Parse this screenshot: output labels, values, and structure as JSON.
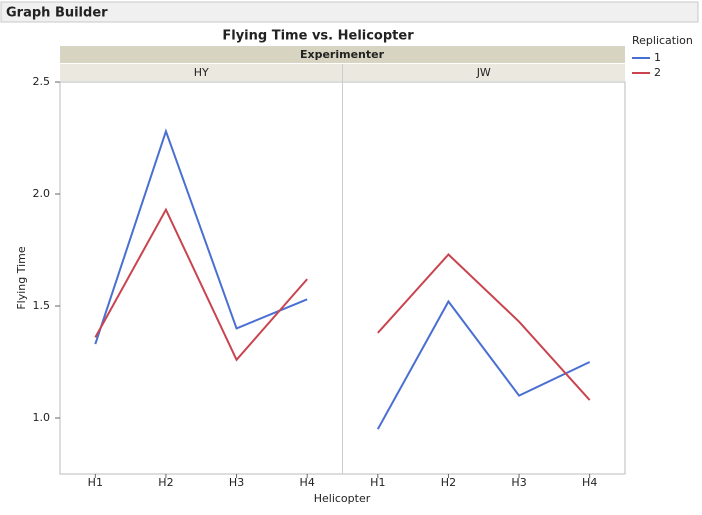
{
  "header": {
    "title": "Graph Builder"
  },
  "chart_data": {
    "type": "line",
    "title": "Flying Time vs. Helicopter",
    "facet_label": "Experimenter",
    "x_label": "Helicopter",
    "y_label": "Flying Time",
    "categories": [
      "H1",
      "H2",
      "H3",
      "H4"
    ],
    "ylim": [
      0.75,
      2.5
    ],
    "yticks": [
      {
        "value": 1,
        "label": "1.0"
      },
      1.5,
      {
        "value": 2,
        "label": "2.0"
      },
      2.5
    ],
    "legend_title": "Replication",
    "series": [
      {
        "name": "1",
        "color": "#4a6fd3"
      },
      {
        "name": "2",
        "color": "#c9444f"
      }
    ],
    "panels": [
      {
        "name": "HY",
        "values": [
          [
            1.33,
            2.28,
            1.4,
            1.53
          ],
          [
            1.36,
            1.93,
            1.26,
            1.62
          ]
        ]
      },
      {
        "name": "JW",
        "values": [
          [
            0.95,
            1.52,
            1.1,
            1.25
          ],
          [
            1.38,
            1.73,
            1.43,
            1.08
          ]
        ]
      }
    ]
  }
}
